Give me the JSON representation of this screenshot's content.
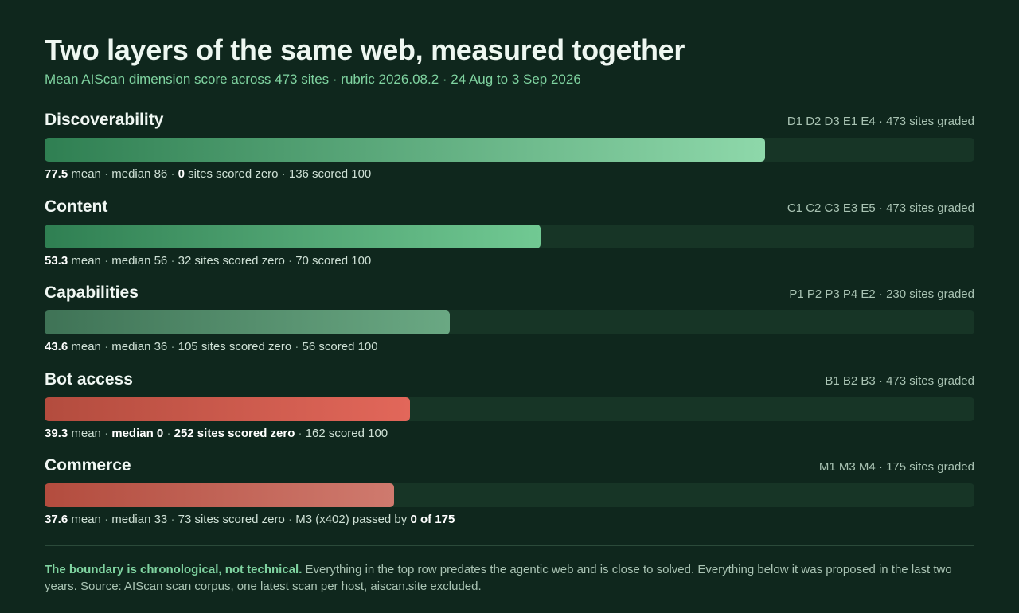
{
  "header": {
    "title": "Two layers of the same web, measured together",
    "subtitle": "Mean AIScan dimension score across 473 sites · rubric 2026.08.2 · 24 Aug to 3 Sep 2026"
  },
  "chart_data": {
    "type": "bar",
    "orientation": "horizontal",
    "title": "Two layers of the same web, measured together",
    "subtitle": "Mean AIScan dimension score across 473 sites · rubric 2026.08.2 · 24 Aug to 3 Sep 2026",
    "xlim": [
      0,
      100
    ],
    "categories": [
      "Discoverability",
      "Content",
      "Capabilities",
      "Bot access",
      "Commerce"
    ],
    "values": [
      77.5,
      53.3,
      43.6,
      39.3,
      37.6
    ],
    "rows": [
      {
        "name": "Discoverability",
        "meta": "D1 D2 D3 E1 E4 · 473 sites graded",
        "mean": 77.5,
        "mean_label": "77.5",
        "colors": [
          "#2f7f52",
          "#8ed8aa"
        ],
        "stats": [
          {
            "text": "77.5",
            "bold": true
          },
          {
            "text": " mean "
          },
          {
            "text": "·",
            "sep": true
          },
          {
            "text": " median 86 "
          },
          {
            "text": "·",
            "sep": true
          },
          {
            "text": " "
          },
          {
            "text": "0",
            "bold": true
          },
          {
            "text": " sites scored zero "
          },
          {
            "text": "·",
            "sep": true
          },
          {
            "text": " 136 scored 100"
          }
        ]
      },
      {
        "name": "Content",
        "meta": "C1 C2 C3 E3 E5 · 473 sites graded",
        "mean": 53.3,
        "mean_label": "53.3",
        "colors": [
          "#2f7f52",
          "#71c993"
        ],
        "stats": [
          {
            "text": "53.3",
            "bold": true
          },
          {
            "text": " mean "
          },
          {
            "text": "·",
            "sep": true
          },
          {
            "text": " median 56 "
          },
          {
            "text": "·",
            "sep": true
          },
          {
            "text": " 32 sites scored zero "
          },
          {
            "text": "·",
            "sep": true
          },
          {
            "text": " 70 scored 100"
          }
        ]
      },
      {
        "name": "Capabilities",
        "meta": "P1 P2 P3 P4 E2 · 230 sites graded",
        "mean": 43.6,
        "mean_label": "43.6",
        "colors": [
          "#3f7356",
          "#6aa883"
        ],
        "stats": [
          {
            "text": "43.6",
            "bold": true
          },
          {
            "text": " mean "
          },
          {
            "text": "·",
            "sep": true
          },
          {
            "text": " median 36 "
          },
          {
            "text": "·",
            "sep": true
          },
          {
            "text": " 105 sites scored zero "
          },
          {
            "text": "·",
            "sep": true
          },
          {
            "text": " 56 scored 100"
          }
        ]
      },
      {
        "name": "Bot access",
        "meta": "B1 B2 B3 · 473 sites graded",
        "mean": 39.3,
        "mean_label": "39.3",
        "colors": [
          "#b34c3e",
          "#e2675a"
        ],
        "stats": [
          {
            "text": "39.3",
            "bold": true
          },
          {
            "text": " mean "
          },
          {
            "text": "·",
            "sep": true
          },
          {
            "text": " "
          },
          {
            "text": "median 0",
            "bold": true
          },
          {
            "text": " "
          },
          {
            "text": "·",
            "sep": true
          },
          {
            "text": " "
          },
          {
            "text": "252 sites scored zero",
            "bold": true
          },
          {
            "text": " "
          },
          {
            "text": "·",
            "sep": true
          },
          {
            "text": " 162 scored 100"
          }
        ]
      },
      {
        "name": "Commerce",
        "meta": "M1 M3 M4 · 175 sites graded",
        "mean": 37.6,
        "mean_label": "37.6",
        "colors": [
          "#b34c3e",
          "#cf7a6e"
        ],
        "stats": [
          {
            "text": "37.6",
            "bold": true
          },
          {
            "text": " mean "
          },
          {
            "text": "·",
            "sep": true
          },
          {
            "text": " median 33 "
          },
          {
            "text": "·",
            "sep": true
          },
          {
            "text": " 73 sites scored zero "
          },
          {
            "text": "·",
            "sep": true
          },
          {
            "text": " M3 (x402) passed by "
          },
          {
            "text": "0 of 175",
            "bold": true
          }
        ]
      }
    ]
  },
  "footnote": {
    "lead": "The boundary is chronological, not technical.",
    "body": " Everything in the top row predates the agentic web and is close to solved. Everything below it was proposed in the last two years. Source: AIScan scan corpus, one latest scan per host, aiscan.site excluded."
  },
  "colors": {
    "background": "#0f271d",
    "track": "#173526",
    "accent_green": "#7fd3a0",
    "accent_red": "#e2675a"
  }
}
